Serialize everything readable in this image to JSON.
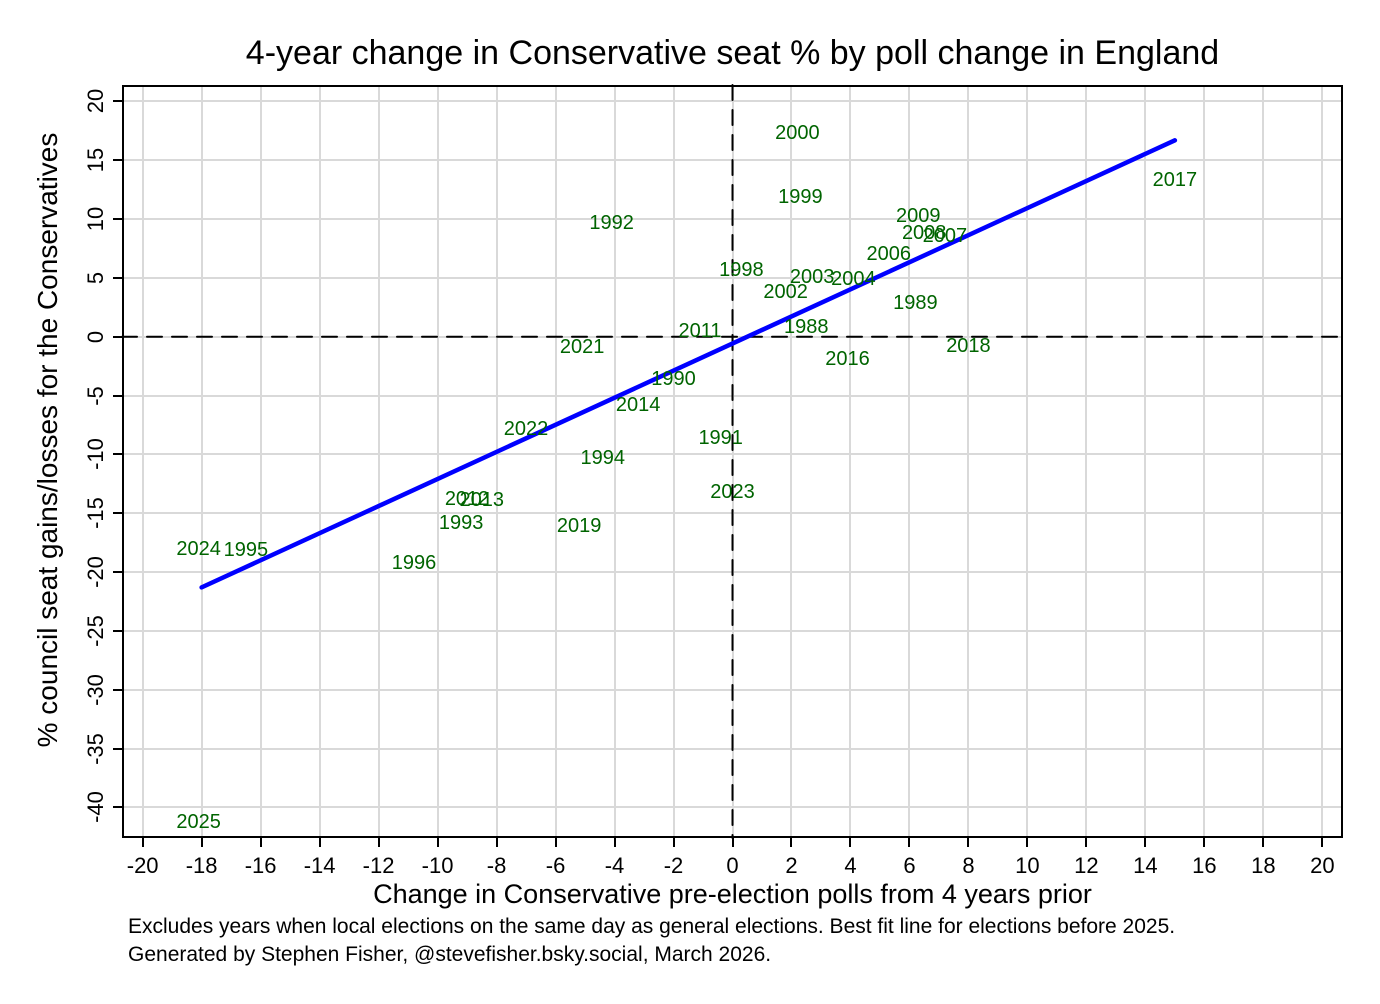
{
  "title": "4-year change in Conservative seat % by poll change in England",
  "footnote": {
    "line1": "Excludes years when local elections on the same day as general elections. Best fit line for elections before 2025.",
    "line2": "Generated by Stephen Fisher, @stevefisher.bsky.social, March 2026."
  },
  "chart_data": {
    "type": "scatter",
    "title": "4-year change in Conservative seat % by poll change in England",
    "xlabel": "Change in Conservative pre-election polls from 4 years prior",
    "ylabel": "% council seat gains/losses for the Conservatives",
    "xlim": [
      -20.7,
      20.7
    ],
    "ylim": [
      -42.6,
      21.4
    ],
    "xticks": [
      -20,
      -18,
      -16,
      -14,
      -12,
      -10,
      -8,
      -6,
      -4,
      -2,
      0,
      2,
      4,
      6,
      8,
      10,
      12,
      14,
      16,
      18,
      20
    ],
    "yticks": [
      -40,
      -35,
      -30,
      -25,
      -20,
      -15,
      -10,
      -5,
      0,
      5,
      10,
      15,
      20
    ],
    "grid": true,
    "marker_style": "year-label-only",
    "legend": "none",
    "colors": {
      "point_label": "#006400",
      "fit_line": "#0000ff",
      "gridline": "#d9d9d9",
      "axis": "#000000",
      "zero_line": "#000000",
      "background": "#ffffff"
    },
    "zero_reference_lines": {
      "x": 0,
      "y": 0,
      "style": "dashed"
    },
    "fit_line": {
      "x1": -18.0,
      "y1": -21.3,
      "x2": 15.0,
      "y2": 16.7,
      "note": "best fit for elections before 2025"
    },
    "points": [
      {
        "label": "1988",
        "x": 2.5,
        "y": 0.8
      },
      {
        "label": "1989",
        "x": 6.2,
        "y": 2.9
      },
      {
        "label": "1990",
        "x": -2.0,
        "y": -3.6
      },
      {
        "label": "1991",
        "x": -0.4,
        "y": -8.6
      },
      {
        "label": "1992",
        "x": -4.1,
        "y": 9.7
      },
      {
        "label": "1993",
        "x": -9.2,
        "y": -15.8
      },
      {
        "label": "1994",
        "x": -4.4,
        "y": -10.3
      },
      {
        "label": "1995",
        "x": -16.5,
        "y": -18.1
      },
      {
        "label": "1996",
        "x": -10.8,
        "y": -19.2
      },
      {
        "label": "1998",
        "x": 0.3,
        "y": 5.7
      },
      {
        "label": "1999",
        "x": 2.3,
        "y": 11.9
      },
      {
        "label": "2000",
        "x": 2.2,
        "y": 17.3
      },
      {
        "label": "2002",
        "x": 1.8,
        "y": 3.8
      },
      {
        "label": "2003",
        "x": 2.7,
        "y": 5.1
      },
      {
        "label": "2004",
        "x": 4.1,
        "y": 4.9
      },
      {
        "label": "2006",
        "x": 5.3,
        "y": 7.0
      },
      {
        "label": "2008",
        "x": 6.5,
        "y": 8.8
      },
      {
        "label": "2007",
        "x": 7.2,
        "y": 8.6
      },
      {
        "label": "2009",
        "x": 6.3,
        "y": 10.3
      },
      {
        "label": "2011",
        "x": -1.1,
        "y": 0.5
      },
      {
        "label": "2012",
        "x": -9.0,
        "y": -13.8
      },
      {
        "label": "2013",
        "x": -8.5,
        "y": -13.9
      },
      {
        "label": "2014",
        "x": -3.2,
        "y": -5.8
      },
      {
        "label": "2016",
        "x": 3.9,
        "y": -1.9
      },
      {
        "label": "2017",
        "x": 15.0,
        "y": 13.3
      },
      {
        "label": "2018",
        "x": 8.0,
        "y": -0.8
      },
      {
        "label": "2019",
        "x": -5.2,
        "y": -16.1
      },
      {
        "label": "2021",
        "x": -5.1,
        "y": -0.9
      },
      {
        "label": "2022",
        "x": -7.0,
        "y": -7.8
      },
      {
        "label": "2023",
        "x": 0.0,
        "y": -13.2
      },
      {
        "label": "2024",
        "x": -18.1,
        "y": -18.0
      },
      {
        "label": "2025",
        "x": -18.1,
        "y": -41.2
      }
    ]
  }
}
